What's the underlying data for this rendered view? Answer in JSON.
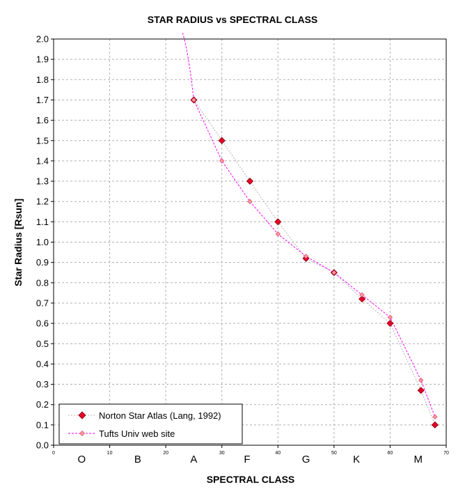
{
  "chart_data": {
    "type": "line",
    "title": "STAR RADIUS vs SPECTRAL CLASS",
    "xlabel": "SPECTRAL CLASS",
    "ylabel": "Star Radius [Rsun]",
    "xlim": [
      0,
      70
    ],
    "ylim": [
      0,
      2.0
    ],
    "x_ticks": [
      0,
      10,
      20,
      30,
      40,
      50,
      60,
      70
    ],
    "y_ticks": [
      0.0,
      0.1,
      0.2,
      0.3,
      0.4,
      0.5,
      0.6,
      0.7,
      0.8,
      0.9,
      1.0,
      1.1,
      1.2,
      1.3,
      1.4,
      1.5,
      1.6,
      1.7,
      1.8,
      1.9,
      2.0
    ],
    "y_tick_labels": [
      "0.0",
      "0.1",
      "0.2",
      "0.3",
      "0.4",
      "0.5",
      "0.6",
      "0.7",
      "0.8",
      "0.9",
      "1.0",
      "1.1",
      "1.2",
      "1.3",
      "1.4",
      "1.5",
      "1.6",
      "1.7",
      "1.8",
      "1.9",
      "2.0"
    ],
    "class_labels": [
      {
        "label": "O",
        "x": 5
      },
      {
        "label": "B",
        "x": 15
      },
      {
        "label": "A",
        "x": 25
      },
      {
        "label": "F",
        "x": 34.5
      },
      {
        "label": "G",
        "x": 45
      },
      {
        "label": "K",
        "x": 54
      },
      {
        "label": "M",
        "x": 65
      }
    ],
    "grid": true,
    "legend_position": "bottom-left",
    "series": [
      {
        "name": "Norton Star Atlas (Lang, 1992)",
        "color": "#e8002a",
        "line_color": "#b0b0b0",
        "marker": "diamond",
        "points": [
          [
            25,
            1.7
          ],
          [
            30,
            1.5
          ],
          [
            35,
            1.3
          ],
          [
            40,
            1.1
          ],
          [
            45,
            0.92
          ],
          [
            50,
            0.85
          ],
          [
            55,
            0.72
          ],
          [
            60,
            0.6
          ],
          [
            65.5,
            0.27
          ],
          [
            68,
            0.1
          ]
        ]
      },
      {
        "name": "Tufts Univ web site",
        "color": "#ff9999",
        "line_color": "#ff00ff",
        "marker": "diamond-small",
        "curve_start": [
          23,
          2.03
        ],
        "points": [
          [
            25,
            1.7
          ],
          [
            30,
            1.4
          ],
          [
            35,
            1.2
          ],
          [
            40,
            1.04
          ],
          [
            45,
            0.93
          ],
          [
            50,
            0.85
          ],
          [
            55,
            0.74
          ],
          [
            60,
            0.63
          ],
          [
            65.5,
            0.32
          ],
          [
            68,
            0.14
          ]
        ]
      }
    ]
  }
}
